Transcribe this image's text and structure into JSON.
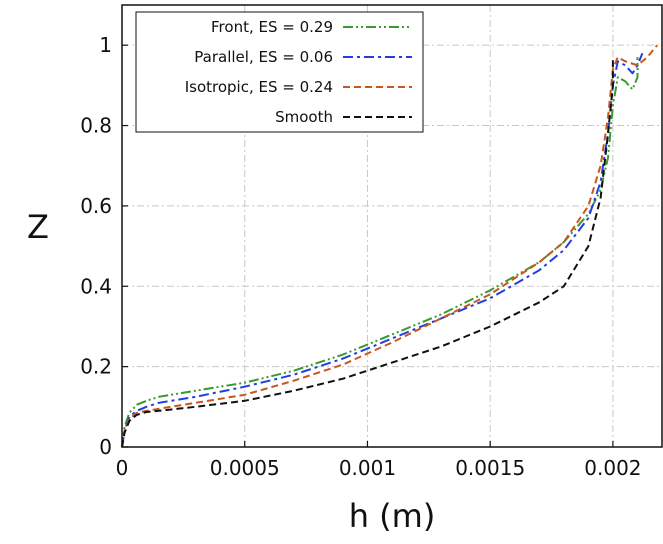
{
  "chart_data": {
    "type": "line",
    "title": "",
    "xlabel": "h (m)",
    "ylabel": "Z",
    "xlim": [
      0,
      0.0022
    ],
    "ylim": [
      0,
      1.1
    ],
    "xticks": [
      0,
      0.0005,
      0.001,
      0.0015,
      0.002
    ],
    "xtick_labels": [
      "0",
      "0.0005",
      "0.001",
      "0.0015",
      "0.002"
    ],
    "yticks": [
      0,
      0.2,
      0.4,
      0.6,
      0.8,
      1
    ],
    "ytick_labels": [
      "0",
      "0.2",
      "0.4",
      "0.6",
      "0.8",
      "1"
    ],
    "grid": true,
    "legend_position": "top-left",
    "series": [
      {
        "name": "Front, ES = 0.29",
        "color": "#3a9a2e",
        "dash": "dash-dot-dot",
        "x": [
          0,
          1e-05,
          3e-05,
          6e-05,
          0.0001,
          0.00015,
          0.0003,
          0.0005,
          0.0007,
          0.0009,
          0.0011,
          0.0013,
          0.0015,
          0.0017,
          0.0018,
          0.0019,
          0.00195,
          0.00198,
          0.002,
          0.00202,
          0.00205,
          0.00208,
          0.0021,
          0.0021
        ],
        "y": [
          0,
          0.05,
          0.085,
          0.105,
          0.115,
          0.125,
          0.14,
          0.16,
          0.19,
          0.23,
          0.28,
          0.33,
          0.39,
          0.46,
          0.51,
          0.58,
          0.64,
          0.72,
          0.85,
          0.92,
          0.91,
          0.89,
          0.92,
          0.97
        ]
      },
      {
        "name": "Parallel, ES = 0.06",
        "color": "#1f3fe0",
        "dash": "dash-dot",
        "x": [
          0,
          1e-05,
          3e-05,
          6e-05,
          0.0001,
          0.00015,
          0.0003,
          0.0005,
          0.0007,
          0.0009,
          0.0011,
          0.0013,
          0.0015,
          0.0017,
          0.0018,
          0.0019,
          0.00195,
          0.00198,
          0.002,
          0.00202,
          0.00205,
          0.00208,
          0.0021,
          0.00212
        ],
        "y": [
          0,
          0.04,
          0.075,
          0.09,
          0.1,
          0.11,
          0.125,
          0.15,
          0.18,
          0.22,
          0.27,
          0.32,
          0.37,
          0.44,
          0.49,
          0.57,
          0.66,
          0.78,
          0.9,
          0.96,
          0.95,
          0.93,
          0.95,
          0.98
        ]
      },
      {
        "name": "Isotropic, ES = 0.24",
        "color": "#c8561a",
        "dash": "dashed",
        "x": [
          0,
          1e-05,
          3e-05,
          6e-05,
          0.0001,
          0.00015,
          0.0003,
          0.0005,
          0.0007,
          0.0009,
          0.0011,
          0.0013,
          0.0015,
          0.0017,
          0.0018,
          0.0019,
          0.00195,
          0.00198,
          0.002,
          0.00202,
          0.00205,
          0.0021,
          0.00214,
          0.00218
        ],
        "y": [
          0,
          0.04,
          0.07,
          0.085,
          0.09,
          0.095,
          0.11,
          0.13,
          0.165,
          0.205,
          0.26,
          0.32,
          0.38,
          0.46,
          0.51,
          0.6,
          0.7,
          0.82,
          0.94,
          0.97,
          0.96,
          0.95,
          0.97,
          1.0
        ]
      },
      {
        "name": "Smooth",
        "color": "#111111",
        "dash": "dashed",
        "x": [
          0,
          1e-05,
          3e-05,
          6e-05,
          0.0001,
          0.00015,
          0.0003,
          0.0005,
          0.0007,
          0.0009,
          0.0011,
          0.0013,
          0.0015,
          0.0017,
          0.0018,
          0.0019,
          0.00195,
          0.00198,
          0.002,
          0.002
        ],
        "y": [
          0,
          0.035,
          0.065,
          0.08,
          0.087,
          0.09,
          0.1,
          0.115,
          0.14,
          0.17,
          0.21,
          0.25,
          0.3,
          0.36,
          0.4,
          0.5,
          0.62,
          0.78,
          0.9,
          0.97
        ]
      }
    ]
  }
}
